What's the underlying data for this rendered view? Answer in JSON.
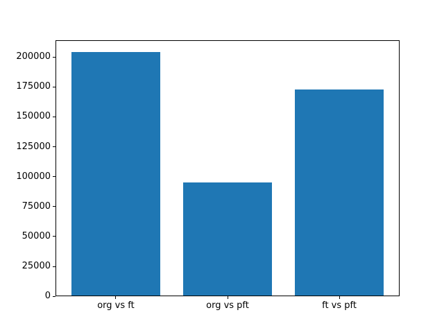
{
  "chart_data": {
    "type": "bar",
    "title": "",
    "xlabel": "",
    "ylabel": "",
    "categories": [
      "org vs ft",
      "org vs pft",
      "ft vs pft"
    ],
    "values": [
      204000,
      95000,
      173000
    ],
    "yticks": [
      0,
      25000,
      50000,
      75000,
      100000,
      125000,
      150000,
      175000,
      200000
    ],
    "ylim": [
      0,
      214200
    ],
    "grid": false,
    "legend_position": "none",
    "bar_color": "#1f77b4"
  },
  "colors": {
    "background": "#ffffff",
    "spine": "#000000",
    "tick_label": "#000000"
  }
}
